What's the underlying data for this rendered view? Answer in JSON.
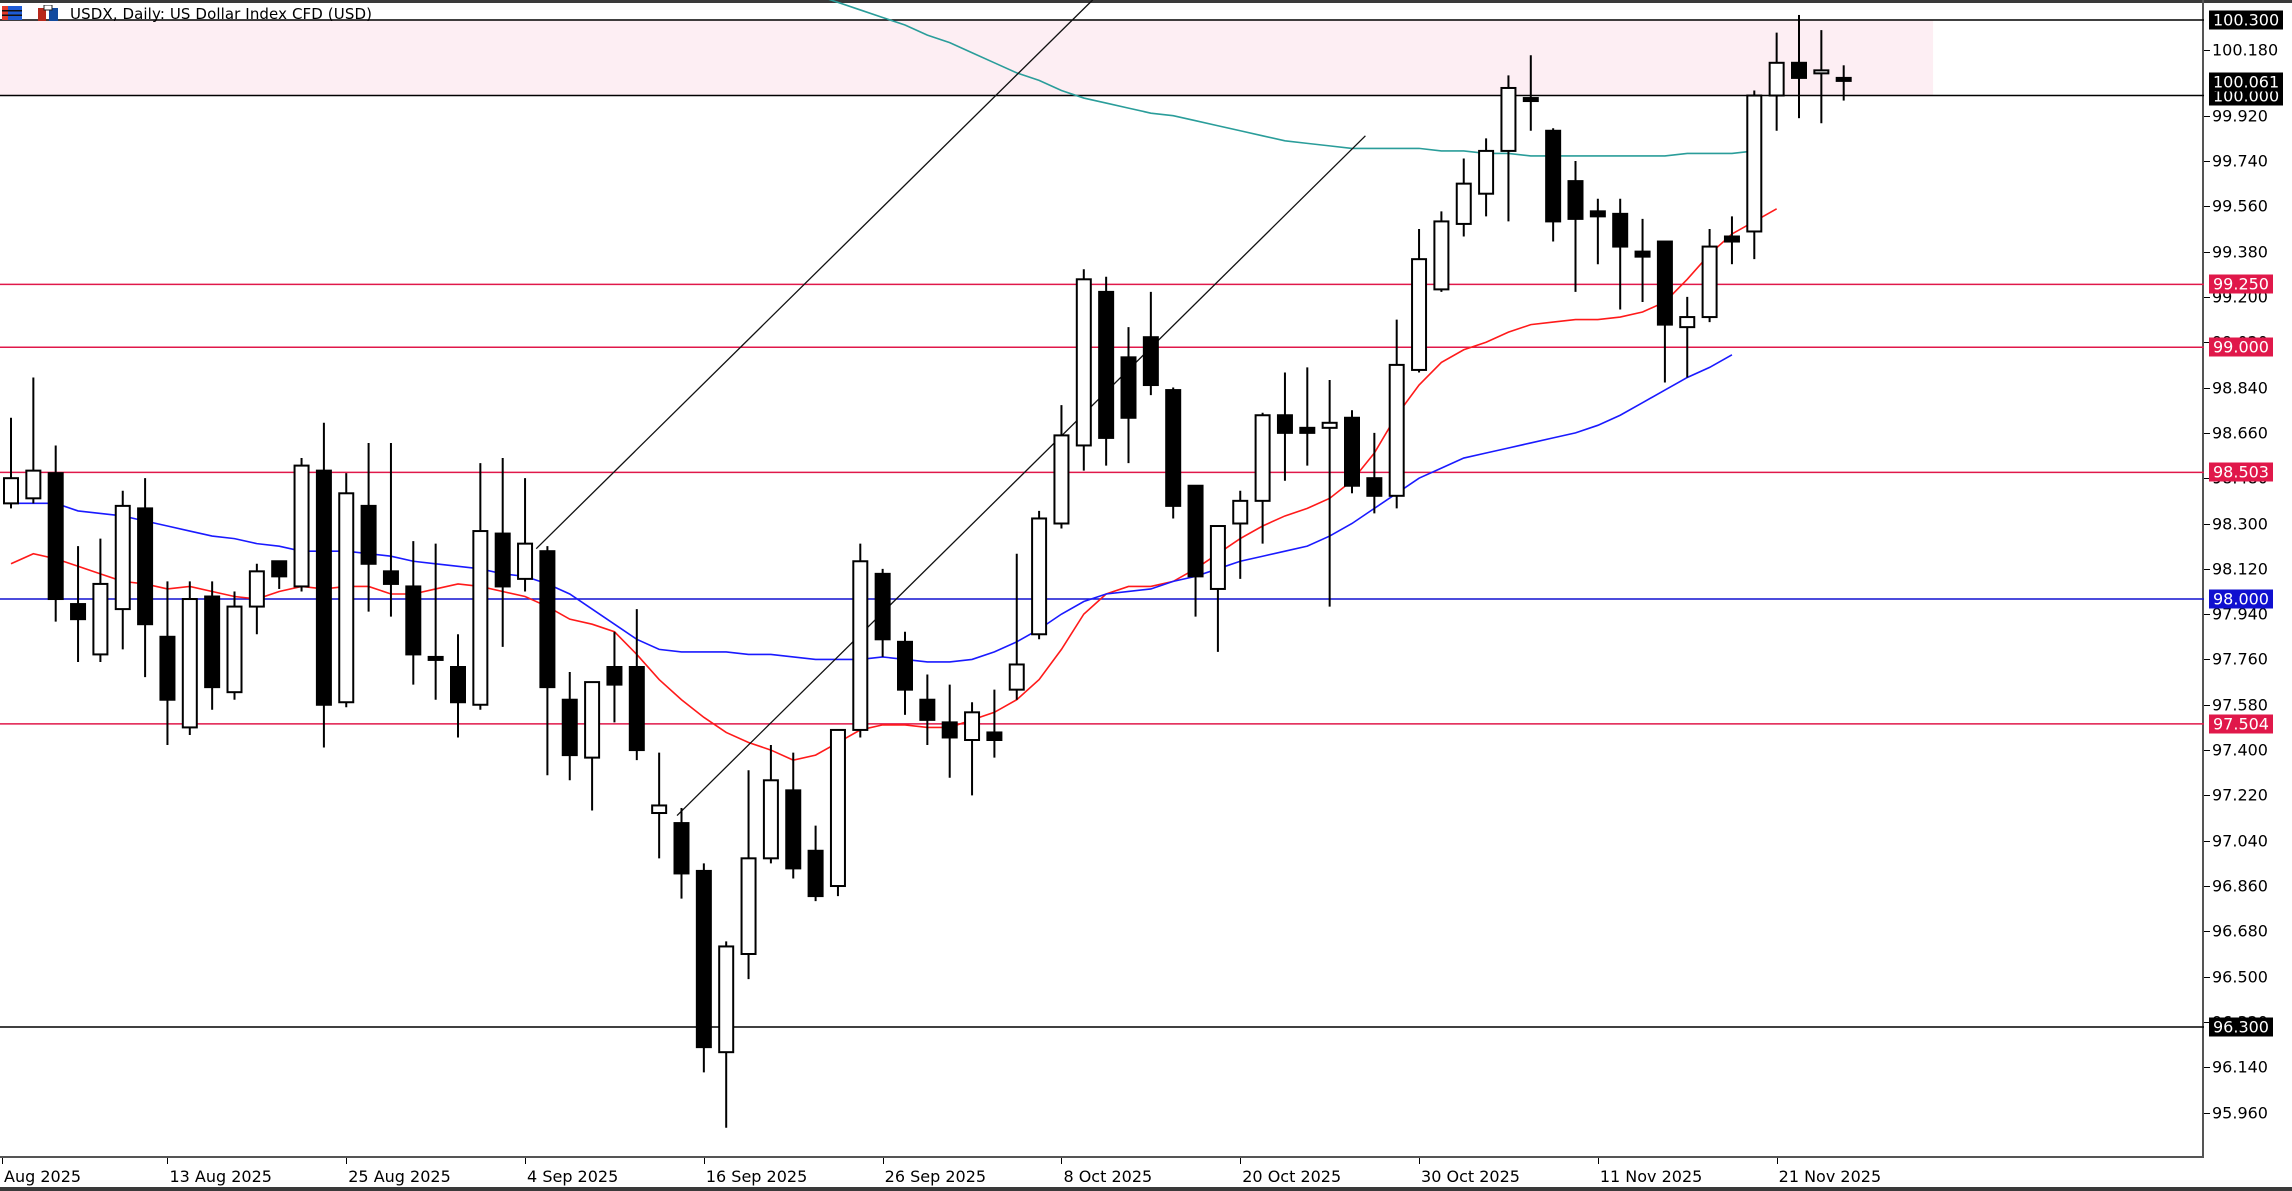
{
  "window": {
    "title": "USDX, Daily:  US Dollar Index CFD (USD)",
    "icons": [
      "chart-list-icon",
      "chart-window-icon"
    ]
  },
  "colors": {
    "background": "#ffffff",
    "bull_body": "#ffffff",
    "bear_body": "#000000",
    "candle_outline": "#000000",
    "resistance_zone": "#fdeef3",
    "ma_fast": "#ff1a1a",
    "ma_mid": "#1a1aff",
    "ma_slow": "#2a9d9a",
    "level_red": "#e0184a",
    "level_blue": "#1010d0",
    "level_black": "#000000"
  },
  "chart_data": {
    "type": "candlestick",
    "title": "USDX, Daily:  US Dollar Index CFD (USD)",
    "symbol": "USDX",
    "timeframe": "Daily",
    "xlabel": "",
    "ylabel": "",
    "ylim": [
      95.8,
      100.4
    ],
    "grid": false,
    "y_ticks": [
      "100.300",
      "100.180",
      "100.061",
      "100.000",
      "99.920",
      "99.740",
      "99.560",
      "99.380",
      "99.200",
      "99.020",
      "98.840",
      "98.660",
      "98.480",
      "98.300",
      "98.120",
      "97.940",
      "97.760",
      "97.580",
      "97.400",
      "97.220",
      "97.040",
      "96.860",
      "96.680",
      "96.500",
      "96.320",
      "96.140",
      "95.960"
    ],
    "y_tick_labels_visible": [
      "99.920",
      "99.740",
      "99.560",
      "99.380",
      "99.200",
      "98.840",
      "98.660",
      "98.300",
      "98.120",
      "97.940",
      "97.760",
      "97.580",
      "97.400",
      "97.220",
      "97.040",
      "96.860",
      "96.680",
      "96.500",
      "96.140",
      "95.960"
    ],
    "x_tick_labels": [
      {
        "label": "Aug 2025",
        "bar": 0
      },
      {
        "label": "13 Aug 2025",
        "bar": 7
      },
      {
        "label": "25 Aug 2025",
        "bar": 15
      },
      {
        "label": "4 Sep 2025",
        "bar": 23
      },
      {
        "label": "16 Sep 2025",
        "bar": 31
      },
      {
        "label": "26 Sep 2025",
        "bar": 39
      },
      {
        "label": "8 Oct 2025",
        "bar": 47
      },
      {
        "label": "20 Oct 2025",
        "bar": 55
      },
      {
        "label": "30 Oct 2025",
        "bar": 63
      },
      {
        "label": "11 Nov 2025",
        "bar": 71
      },
      {
        "label": "21 Nov 2025",
        "bar": 79
      }
    ],
    "horizontal_levels": [
      {
        "price": 100.3,
        "label": "100.300",
        "color": "#000000",
        "badge_bg": "#000000",
        "badge_fg": "#ffffff"
      },
      {
        "price": 100.0,
        "label": "100.000",
        "color": "#000000",
        "badge_bg": "#000000",
        "badge_fg": "#ffffff"
      },
      {
        "price": 99.25,
        "label": "99.250",
        "color": "#e0184a",
        "badge_bg": "#e0184a",
        "badge_fg": "#ffffff"
      },
      {
        "price": 99.0,
        "label": "99.000",
        "color": "#e0184a",
        "badge_bg": "#e0184a",
        "badge_fg": "#ffffff"
      },
      {
        "price": 98.503,
        "label": "98.503",
        "color": "#e0184a",
        "badge_bg": "#e0184a",
        "badge_fg": "#ffffff"
      },
      {
        "price": 98.0,
        "label": "98.000",
        "color": "#1010d0",
        "badge_bg": "#1010d0",
        "badge_fg": "#ffffff"
      },
      {
        "price": 97.504,
        "label": "97.504",
        "color": "#e0184a",
        "badge_bg": "#e0184a",
        "badge_fg": "#ffffff"
      },
      {
        "price": 96.3,
        "label": "96.300",
        "color": "#000000",
        "badge_bg": "#000000",
        "badge_fg": "#ffffff"
      }
    ],
    "current_price": {
      "price": 100.061,
      "label": "100.061"
    },
    "zones": [
      {
        "name": "resistance-zone",
        "from": 100.0,
        "to": 100.3,
        "x_end_bar": 86
      }
    ],
    "trendlines": [
      {
        "name": "channel-upper",
        "from": {
          "bar": 23.5,
          "price": 98.2
        },
        "to": {
          "bar": 48.4,
          "price": 100.38
        }
      },
      {
        "name": "channel-lower",
        "from": {
          "bar": 29.8,
          "price": 97.14
        },
        "to": {
          "bar": 60.6,
          "price": 99.84
        }
      }
    ],
    "moving_averages": [
      {
        "name": "MA fast (red)",
        "color": "#ff1a1a",
        "values": [
          98.14,
          98.18,
          98.16,
          98.13,
          98.1,
          98.07,
          98.06,
          98.04,
          98.05,
          98.03,
          98.01,
          98.0,
          98.03,
          98.05,
          98.04,
          98.05,
          98.05,
          98.02,
          98.02,
          98.04,
          98.06,
          98.05,
          98.03,
          98.01,
          97.97,
          97.92,
          97.9,
          97.87,
          97.78,
          97.68,
          97.6,
          97.53,
          97.47,
          97.43,
          97.4,
          97.36,
          97.38,
          97.43,
          97.48,
          97.5,
          97.5,
          97.49,
          97.49,
          97.52,
          97.55,
          97.6,
          97.68,
          97.8,
          97.94,
          98.02,
          98.05,
          98.05,
          98.07,
          98.12,
          98.18,
          98.24,
          98.29,
          98.33,
          98.36,
          98.4,
          98.47,
          98.58,
          98.73,
          98.85,
          98.94,
          98.99,
          99.02,
          99.06,
          99.09,
          99.1,
          99.11,
          99.11,
          99.12,
          99.14,
          99.18,
          99.27,
          99.37,
          99.45,
          99.5,
          99.55
        ]
      },
      {
        "name": "MA mid (blue)",
        "color": "#1a1aff",
        "values": [
          98.38,
          98.38,
          98.38,
          98.35,
          98.34,
          98.33,
          98.31,
          98.29,
          98.27,
          98.25,
          98.24,
          98.22,
          98.21,
          98.19,
          98.19,
          98.19,
          98.18,
          98.17,
          98.15,
          98.14,
          98.13,
          98.12,
          98.1,
          98.09,
          98.06,
          98.02,
          97.96,
          97.9,
          97.84,
          97.8,
          97.79,
          97.79,
          97.79,
          97.78,
          97.78,
          97.77,
          97.76,
          97.76,
          97.76,
          97.77,
          97.76,
          97.75,
          97.75,
          97.76,
          97.79,
          97.83,
          97.88,
          97.94,
          97.99,
          98.02,
          98.03,
          98.04,
          98.07,
          98.09,
          98.12,
          98.15,
          98.17,
          98.19,
          98.21,
          98.25,
          98.3,
          98.36,
          98.42,
          98.48,
          98.52,
          98.56,
          98.58,
          98.6,
          98.62,
          98.64,
          98.66,
          98.69,
          98.73,
          98.78,
          98.83,
          98.88,
          98.92,
          98.97
        ]
      },
      {
        "name": "MA slow (teal)",
        "color": "#2a9d9a",
        "values": [
          100.48,
          100.46,
          100.43,
          100.4,
          100.37,
          100.34,
          100.31,
          100.28,
          100.24,
          100.21,
          100.17,
          100.13,
          100.09,
          100.06,
          100.02,
          99.99,
          99.97,
          99.95,
          99.93,
          99.92,
          99.9,
          99.88,
          99.86,
          99.84,
          99.82,
          99.81,
          99.8,
          99.79,
          99.79,
          99.79,
          99.79,
          99.78,
          99.78,
          99.77,
          99.77,
          99.76,
          99.76,
          99.76,
          99.76,
          99.76,
          99.76,
          99.76,
          99.77,
          99.77,
          99.77,
          99.78
        ]
      }
    ],
    "candles": [
      {
        "o": 98.38,
        "h": 98.72,
        "l": 98.36,
        "c": 98.48
      },
      {
        "o": 98.4,
        "h": 98.88,
        "l": 98.38,
        "c": 98.51
      },
      {
        "o": 98.5,
        "h": 98.61,
        "l": 97.91,
        "c": 98.0
      },
      {
        "o": 97.98,
        "h": 98.21,
        "l": 97.75,
        "c": 97.92
      },
      {
        "o": 97.78,
        "h": 98.24,
        "l": 97.75,
        "c": 98.06
      },
      {
        "o": 97.96,
        "h": 98.43,
        "l": 97.8,
        "c": 98.37
      },
      {
        "o": 98.36,
        "h": 98.48,
        "l": 97.69,
        "c": 97.9
      },
      {
        "o": 97.85,
        "h": 98.07,
        "l": 97.42,
        "c": 97.6
      },
      {
        "o": 97.49,
        "h": 98.07,
        "l": 97.46,
        "c": 98.0
      },
      {
        "o": 98.01,
        "h": 98.07,
        "l": 97.56,
        "c": 97.65
      },
      {
        "o": 97.63,
        "h": 98.03,
        "l": 97.6,
        "c": 97.97
      },
      {
        "o": 97.97,
        "h": 98.14,
        "l": 97.86,
        "c": 98.11
      },
      {
        "o": 98.15,
        "h": 98.14,
        "l": 98.04,
        "c": 98.09
      },
      {
        "o": 98.05,
        "h": 98.56,
        "l": 98.03,
        "c": 98.53
      },
      {
        "o": 98.51,
        "h": 98.7,
        "l": 97.41,
        "c": 97.58
      },
      {
        "o": 97.59,
        "h": 98.5,
        "l": 97.57,
        "c": 98.42
      },
      {
        "o": 98.37,
        "h": 98.62,
        "l": 97.95,
        "c": 98.14
      },
      {
        "o": 98.11,
        "h": 98.62,
        "l": 97.93,
        "c": 98.06
      },
      {
        "o": 98.05,
        "h": 98.23,
        "l": 97.66,
        "c": 97.78
      },
      {
        "o": 97.77,
        "h": 98.22,
        "l": 97.6,
        "c": 97.76
      },
      {
        "o": 97.73,
        "h": 97.86,
        "l": 97.45,
        "c": 97.59
      },
      {
        "o": 97.58,
        "h": 98.54,
        "l": 97.56,
        "c": 98.27
      },
      {
        "o": 98.26,
        "h": 98.56,
        "l": 97.81,
        "c": 98.05
      },
      {
        "o": 98.08,
        "h": 98.48,
        "l": 98.03,
        "c": 98.22
      },
      {
        "o": 98.19,
        "h": 98.21,
        "l": 97.3,
        "c": 97.65
      },
      {
        "o": 97.6,
        "h": 97.71,
        "l": 97.28,
        "c": 97.38
      },
      {
        "o": 97.37,
        "h": 97.65,
        "l": 97.16,
        "c": 97.67
      },
      {
        "o": 97.73,
        "h": 97.87,
        "l": 97.51,
        "c": 97.66
      },
      {
        "o": 97.73,
        "h": 97.96,
        "l": 97.36,
        "c": 97.4
      },
      {
        "o": 97.15,
        "h": 97.39,
        "l": 96.97,
        "c": 97.18
      },
      {
        "o": 97.11,
        "h": 97.17,
        "l": 96.81,
        "c": 96.91
      },
      {
        "o": 96.92,
        "h": 96.95,
        "l": 96.12,
        "c": 96.22
      },
      {
        "o": 96.2,
        "h": 96.64,
        "l": 95.9,
        "c": 96.62
      },
      {
        "o": 96.59,
        "h": 97.32,
        "l": 96.49,
        "c": 96.97
      },
      {
        "o": 96.97,
        "h": 97.42,
        "l": 96.95,
        "c": 97.28
      },
      {
        "o": 97.24,
        "h": 97.39,
        "l": 96.89,
        "c": 96.93
      },
      {
        "o": 97.0,
        "h": 97.1,
        "l": 96.8,
        "c": 96.82
      },
      {
        "o": 96.86,
        "h": 97.48,
        "l": 96.82,
        "c": 97.48
      },
      {
        "o": 97.48,
        "h": 98.22,
        "l": 97.45,
        "c": 98.15
      },
      {
        "o": 98.1,
        "h": 98.12,
        "l": 97.77,
        "c": 97.84
      },
      {
        "o": 97.83,
        "h": 97.87,
        "l": 97.54,
        "c": 97.64
      },
      {
        "o": 97.6,
        "h": 97.7,
        "l": 97.42,
        "c": 97.52
      },
      {
        "o": 97.51,
        "h": 97.66,
        "l": 97.29,
        "c": 97.45
      },
      {
        "o": 97.44,
        "h": 97.59,
        "l": 97.22,
        "c": 97.55
      },
      {
        "o": 97.47,
        "h": 97.64,
        "l": 97.37,
        "c": 97.44
      },
      {
        "o": 97.64,
        "h": 98.18,
        "l": 97.6,
        "c": 97.74
      },
      {
        "o": 97.86,
        "h": 98.35,
        "l": 97.84,
        "c": 98.32
      },
      {
        "o": 98.3,
        "h": 98.77,
        "l": 98.28,
        "c": 98.65
      },
      {
        "o": 98.61,
        "h": 99.31,
        "l": 98.51,
        "c": 99.27
      },
      {
        "o": 99.22,
        "h": 99.28,
        "l": 98.53,
        "c": 98.64
      },
      {
        "o": 98.96,
        "h": 99.08,
        "l": 98.54,
        "c": 98.72
      },
      {
        "o": 99.04,
        "h": 99.22,
        "l": 98.81,
        "c": 98.85
      },
      {
        "o": 98.83,
        "h": 98.84,
        "l": 98.32,
        "c": 98.37
      },
      {
        "o": 98.45,
        "h": 98.45,
        "l": 97.93,
        "c": 98.09
      },
      {
        "o": 98.04,
        "h": 98.29,
        "l": 97.79,
        "c": 98.29
      },
      {
        "o": 98.3,
        "h": 98.43,
        "l": 98.08,
        "c": 98.39
      },
      {
        "o": 98.39,
        "h": 98.74,
        "l": 98.22,
        "c": 98.73
      },
      {
        "o": 98.73,
        "h": 98.9,
        "l": 98.47,
        "c": 98.66
      },
      {
        "o": 98.68,
        "h": 98.92,
        "l": 98.53,
        "c": 98.66
      },
      {
        "o": 98.68,
        "h": 98.87,
        "l": 97.97,
        "c": 98.7
      },
      {
        "o": 98.72,
        "h": 98.75,
        "l": 98.42,
        "c": 98.45
      },
      {
        "o": 98.48,
        "h": 98.66,
        "l": 98.34,
        "c": 98.41
      },
      {
        "o": 98.41,
        "h": 99.11,
        "l": 98.36,
        "c": 98.93
      },
      {
        "o": 98.91,
        "h": 99.47,
        "l": 98.9,
        "c": 99.35
      },
      {
        "o": 99.23,
        "h": 99.54,
        "l": 99.22,
        "c": 99.5
      },
      {
        "o": 99.49,
        "h": 99.75,
        "l": 99.44,
        "c": 99.65
      },
      {
        "o": 99.61,
        "h": 99.83,
        "l": 99.52,
        "c": 99.78
      },
      {
        "o": 99.78,
        "h": 100.08,
        "l": 99.5,
        "c": 100.03
      },
      {
        "o": 99.99,
        "h": 100.16,
        "l": 99.86,
        "c": 99.98
      },
      {
        "o": 99.86,
        "h": 99.87,
        "l": 99.42,
        "c": 99.5
      },
      {
        "o": 99.66,
        "h": 99.74,
        "l": 99.22,
        "c": 99.51
      },
      {
        "o": 99.54,
        "h": 99.59,
        "l": 99.33,
        "c": 99.52
      },
      {
        "o": 99.53,
        "h": 99.59,
        "l": 99.15,
        "c": 99.4
      },
      {
        "o": 99.38,
        "h": 99.51,
        "l": 99.18,
        "c": 99.36
      },
      {
        "o": 99.42,
        "h": 99.42,
        "l": 98.86,
        "c": 99.09
      },
      {
        "o": 99.08,
        "h": 99.2,
        "l": 98.88,
        "c": 99.12
      },
      {
        "o": 99.12,
        "h": 99.47,
        "l": 99.1,
        "c": 99.4
      },
      {
        "o": 99.44,
        "h": 99.52,
        "l": 99.33,
        "c": 99.42
      },
      {
        "o": 99.46,
        "h": 100.02,
        "l": 99.35,
        "c": 100.0
      },
      {
        "o": 100.0,
        "h": 100.25,
        "l": 99.86,
        "c": 100.13
      },
      {
        "o": 100.13,
        "h": 100.32,
        "l": 99.91,
        "c": 100.07
      },
      {
        "o": 100.1,
        "h": 100.26,
        "l": 99.89,
        "c": 100.1
      },
      {
        "o": 100.07,
        "h": 100.12,
        "l": 99.98,
        "c": 100.061
      }
    ]
  },
  "y_axis": {
    "labels": [
      {
        "price": 100.18,
        "text": "100.180"
      },
      {
        "price": 99.92,
        "text": "99.920"
      },
      {
        "price": 99.74,
        "text": "99.740"
      },
      {
        "price": 99.56,
        "text": "99.560"
      },
      {
        "price": 99.38,
        "text": "99.380"
      },
      {
        "price": 99.2,
        "text": "99.200"
      },
      {
        "price": 99.02,
        "text": "99.020"
      },
      {
        "price": 98.84,
        "text": "98.840"
      },
      {
        "price": 98.66,
        "text": "98.660"
      },
      {
        "price": 98.48,
        "text": "98.480"
      },
      {
        "price": 98.3,
        "text": "98.300"
      },
      {
        "price": 98.12,
        "text": "98.120"
      },
      {
        "price": 97.94,
        "text": "97.940"
      },
      {
        "price": 97.76,
        "text": "97.760"
      },
      {
        "price": 97.58,
        "text": "97.580"
      },
      {
        "price": 97.4,
        "text": "97.400"
      },
      {
        "price": 97.22,
        "text": "97.220"
      },
      {
        "price": 97.04,
        "text": "97.040"
      },
      {
        "price": 96.86,
        "text": "96.860"
      },
      {
        "price": 96.68,
        "text": "96.680"
      },
      {
        "price": 96.5,
        "text": "96.500"
      },
      {
        "price": 96.32,
        "text": "96.320"
      },
      {
        "price": 96.14,
        "text": "96.140"
      },
      {
        "price": 95.96,
        "text": "95.960"
      }
    ]
  }
}
